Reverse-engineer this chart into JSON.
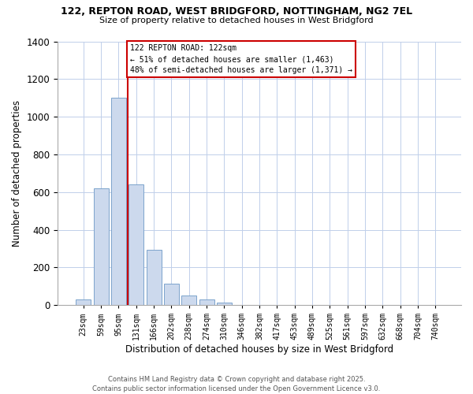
{
  "title_line1": "122, REPTON ROAD, WEST BRIDGFORD, NOTTINGHAM, NG2 7EL",
  "title_line2": "Size of property relative to detached houses in West Bridgford",
  "bar_labels": [
    "23sqm",
    "59sqm",
    "95sqm",
    "131sqm",
    "166sqm",
    "202sqm",
    "238sqm",
    "274sqm",
    "310sqm",
    "346sqm",
    "382sqm",
    "417sqm",
    "453sqm",
    "489sqm",
    "525sqm",
    "561sqm",
    "597sqm",
    "632sqm",
    "668sqm",
    "704sqm",
    "740sqm"
  ],
  "bar_values": [
    30,
    620,
    1100,
    640,
    295,
    115,
    50,
    30,
    15,
    0,
    0,
    0,
    0,
    0,
    0,
    0,
    0,
    0,
    0,
    0,
    0
  ],
  "bar_color": "#ccd9ed",
  "bar_edge_color": "#7ca3cc",
  "xlabel": "Distribution of detached houses by size in West Bridgford",
  "ylabel": "Number of detached properties",
  "ylim": [
    0,
    1400
  ],
  "yticks": [
    0,
    200,
    400,
    600,
    800,
    1000,
    1200,
    1400
  ],
  "property_line_color": "#cc0000",
  "annotation_title": "122 REPTON ROAD: 122sqm",
  "annotation_line1": "← 51% of detached houses are smaller (1,463)",
  "annotation_line2": "48% of semi-detached houses are larger (1,371) →",
  "annotation_box_color": "#cc0000",
  "footer_line1": "Contains HM Land Registry data © Crown copyright and database right 2025.",
  "footer_line2": "Contains public sector information licensed under the Open Government Licence v3.0.",
  "bg_color": "#ffffff",
  "grid_color": "#c0cfea"
}
